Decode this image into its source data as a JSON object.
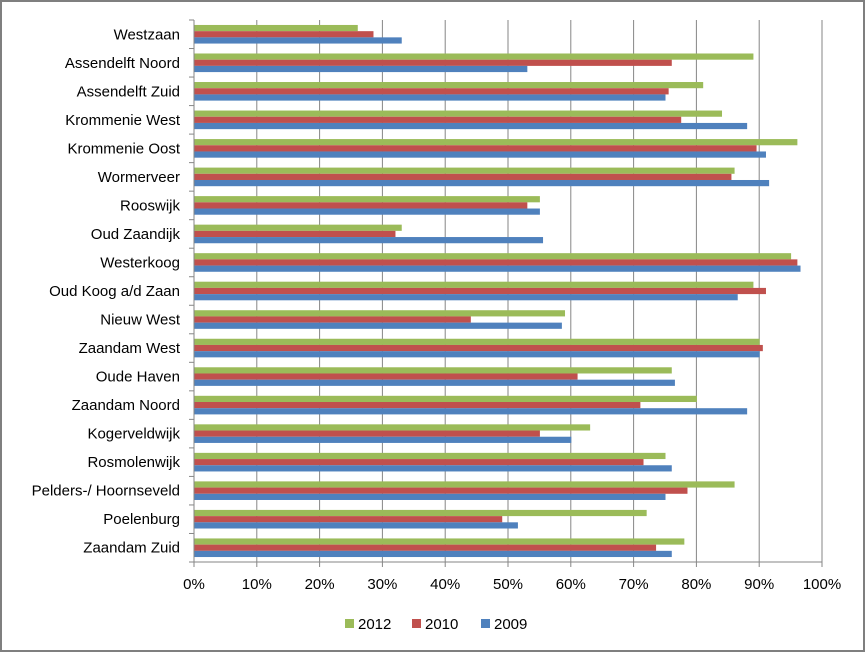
{
  "chart_data": {
    "type": "bar",
    "orientation": "horizontal",
    "title": "",
    "xlabel": "",
    "ylabel": "",
    "xlim": [
      0,
      1
    ],
    "x_ticks": [
      "0%",
      "10%",
      "20%",
      "30%",
      "40%",
      "50%",
      "60%",
      "70%",
      "80%",
      "90%",
      "100%"
    ],
    "grid": "vertical",
    "legend_position": "bottom",
    "categories": [
      "Westzaan",
      "Assendelft Noord",
      "Assendelft Zuid",
      "Krommenie West",
      "Krommenie Oost",
      "Wormerveer",
      "Rooswijk",
      "Oud Zaandijk",
      "Westerkoog",
      "Oud Koog a/d Zaan",
      "Nieuw West",
      "Zaandam West",
      "Oude Haven",
      "Zaandam Noord",
      "Kogerveldwijk",
      "Rosmolenwijk",
      "Pelders-/ Hoornseveld",
      "Poelenburg",
      "Zaandam Zuid"
    ],
    "series": [
      {
        "name": "2012",
        "color": "#9bbb59",
        "values": [
          0.26,
          0.89,
          0.81,
          0.84,
          0.96,
          0.86,
          0.55,
          0.33,
          0.95,
          0.89,
          0.59,
          0.9,
          0.76,
          0.8,
          0.63,
          0.75,
          0.86,
          0.72,
          0.78
        ]
      },
      {
        "name": "2010",
        "color": "#c0504d",
        "values": [
          0.285,
          0.76,
          0.755,
          0.775,
          0.895,
          0.855,
          0.53,
          0.32,
          0.96,
          0.91,
          0.44,
          0.905,
          0.61,
          0.71,
          0.55,
          0.715,
          0.785,
          0.49,
          0.735
        ]
      },
      {
        "name": "2009",
        "color": "#4f81bd",
        "values": [
          0.33,
          0.53,
          0.75,
          0.88,
          0.91,
          0.915,
          0.55,
          0.555,
          0.965,
          0.865,
          0.585,
          0.9,
          0.765,
          0.88,
          0.6,
          0.76,
          0.75,
          0.515,
          0.76
        ]
      }
    ],
    "legend": [
      {
        "label": "2012",
        "color": "#9bbb59"
      },
      {
        "label": "2010",
        "color": "#c0504d"
      },
      {
        "label": "2009",
        "color": "#4f81bd"
      }
    ]
  }
}
